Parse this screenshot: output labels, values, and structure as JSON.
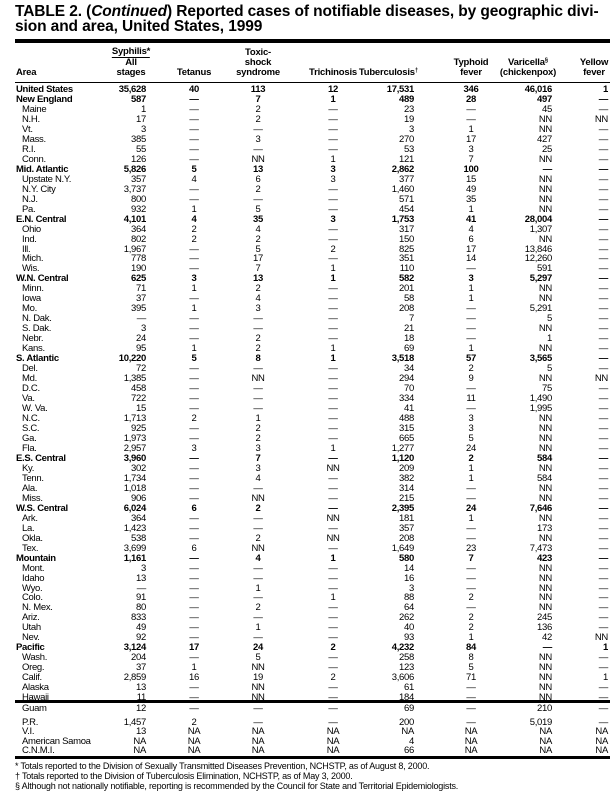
{
  "title": {
    "prefix": "TABLE 2. (",
    "continued": "Continued",
    "rest": ") Reported cases of notifiable diseases, by geographic divi-",
    "line2": "sion and area, United States, 1999"
  },
  "headers": {
    "area": "Area",
    "syphilis_group": "Syphilis*",
    "syphilis_l1": "All",
    "syphilis_l2": "stages",
    "tetanus": "Tetanus",
    "tss_l1": "Toxic-",
    "tss_l2": "shock",
    "tss_l3": "syndrome",
    "trichinosis": "Trichinosis",
    "tuberculosis": "Tuberculosis",
    "tuberculosis_mark": "†",
    "typhoid_l1": "Typhoid",
    "typhoid_l2": "fever",
    "varicella_l1": "Varicella",
    "varicella_mark": "§",
    "varicella_l2": "(chickenpox)",
    "yellow_l1": "Yellow",
    "yellow_l2": "fever"
  },
  "rows": [
    {
      "area": "United States",
      "level": "region",
      "values": [
        "35,628",
        "40",
        "113",
        "12",
        "17,531",
        "346",
        "46,016",
        "1"
      ]
    },
    {
      "area": "New England",
      "level": "region",
      "values": [
        "587",
        "—",
        "7",
        "1",
        "489",
        "28",
        "497",
        "—"
      ]
    },
    {
      "area": "Maine",
      "level": "sub",
      "values": [
        "1",
        "—",
        "2",
        "—",
        "23",
        "—",
        "45",
        "—"
      ]
    },
    {
      "area": "N.H.",
      "level": "sub",
      "values": [
        "17",
        "—",
        "2",
        "—",
        "19",
        "—",
        "NN",
        "NN"
      ]
    },
    {
      "area": "Vt.",
      "level": "sub",
      "values": [
        "3",
        "—",
        "—",
        "—",
        "3",
        "1",
        "NN",
        "—"
      ]
    },
    {
      "area": "Mass.",
      "level": "sub",
      "values": [
        "385",
        "—",
        "3",
        "—",
        "270",
        "17",
        "427",
        "—"
      ]
    },
    {
      "area": "R.I.",
      "level": "sub",
      "values": [
        "55",
        "—",
        "—",
        "—",
        "53",
        "3",
        "25",
        "—"
      ]
    },
    {
      "area": "Conn.",
      "level": "sub",
      "values": [
        "126",
        "—",
        "NN",
        "1",
        "121",
        "7",
        "NN",
        "—"
      ]
    },
    {
      "area": "Mid. Atlantic",
      "level": "region",
      "values": [
        "5,826",
        "5",
        "13",
        "3",
        "2,862",
        "100",
        "—",
        "—"
      ]
    },
    {
      "area": "Upstate N.Y.",
      "level": "sub",
      "values": [
        "357",
        "4",
        "6",
        "3",
        "377",
        "15",
        "NN",
        "—"
      ]
    },
    {
      "area": "N.Y. City",
      "level": "sub",
      "values": [
        "3,737",
        "—",
        "2",
        "—",
        "1,460",
        "49",
        "NN",
        "—"
      ]
    },
    {
      "area": "N.J.",
      "level": "sub",
      "values": [
        "800",
        "—",
        "—",
        "—",
        "571",
        "35",
        "NN",
        "—"
      ]
    },
    {
      "area": "Pa.",
      "level": "sub",
      "values": [
        "932",
        "1",
        "5",
        "—",
        "454",
        "1",
        "NN",
        "—"
      ]
    },
    {
      "area": "E.N. Central",
      "level": "region",
      "values": [
        "4,101",
        "4",
        "35",
        "3",
        "1,753",
        "41",
        "28,004",
        "—"
      ]
    },
    {
      "area": "Ohio",
      "level": "sub",
      "values": [
        "364",
        "2",
        "4",
        "—",
        "317",
        "4",
        "1,307",
        "—"
      ]
    },
    {
      "area": "Ind.",
      "level": "sub",
      "values": [
        "802",
        "2",
        "2",
        "—",
        "150",
        "6",
        "NN",
        "—"
      ]
    },
    {
      "area": "Ill.",
      "level": "sub",
      "values": [
        "1,967",
        "—",
        "5",
        "2",
        "825",
        "17",
        "13,846",
        "—"
      ]
    },
    {
      "area": "Mich.",
      "level": "sub",
      "values": [
        "778",
        "—",
        "17",
        "—",
        "351",
        "14",
        "12,260",
        "—"
      ]
    },
    {
      "area": "Wis.",
      "level": "sub",
      "values": [
        "190",
        "—",
        "7",
        "1",
        "110",
        "—",
        "591",
        "—"
      ]
    },
    {
      "area": "W.N. Central",
      "level": "region",
      "values": [
        "625",
        "3",
        "13",
        "1",
        "582",
        "3",
        "5,297",
        "—"
      ]
    },
    {
      "area": "Minn.",
      "level": "sub",
      "values": [
        "71",
        "1",
        "2",
        "—",
        "201",
        "1",
        "NN",
        "—"
      ]
    },
    {
      "area": "Iowa",
      "level": "sub",
      "values": [
        "37",
        "—",
        "4",
        "—",
        "58",
        "1",
        "NN",
        "—"
      ]
    },
    {
      "area": "Mo.",
      "level": "sub",
      "values": [
        "395",
        "1",
        "3",
        "—",
        "208",
        "—",
        "5,291",
        "—"
      ]
    },
    {
      "area": "N. Dak.",
      "level": "sub",
      "values": [
        "—",
        "—",
        "—",
        "—",
        "7",
        "—",
        "5",
        "—"
      ]
    },
    {
      "area": "S. Dak.",
      "level": "sub",
      "values": [
        "3",
        "—",
        "—",
        "—",
        "21",
        "—",
        "NN",
        "—"
      ]
    },
    {
      "area": "Nebr.",
      "level": "sub",
      "values": [
        "24",
        "—",
        "2",
        "—",
        "18",
        "—",
        "1",
        "—"
      ]
    },
    {
      "area": "Kans.",
      "level": "sub",
      "values": [
        "95",
        "1",
        "2",
        "1",
        "69",
        "1",
        "NN",
        "—"
      ]
    },
    {
      "area": "S. Atlantic",
      "level": "region",
      "values": [
        "10,220",
        "5",
        "8",
        "1",
        "3,518",
        "57",
        "3,565",
        "—"
      ]
    },
    {
      "area": "Del.",
      "level": "sub",
      "values": [
        "72",
        "—",
        "—",
        "—",
        "34",
        "2",
        "5",
        "—"
      ]
    },
    {
      "area": "Md.",
      "level": "sub",
      "values": [
        "1,385",
        "—",
        "NN",
        "—",
        "294",
        "9",
        "NN",
        "NN"
      ]
    },
    {
      "area": "D.C.",
      "level": "sub",
      "values": [
        "458",
        "—",
        "—",
        "—",
        "70",
        "—",
        "75",
        "—"
      ]
    },
    {
      "area": "Va.",
      "level": "sub",
      "values": [
        "722",
        "—",
        "—",
        "—",
        "334",
        "11",
        "1,490",
        "—"
      ]
    },
    {
      "area": "W. Va.",
      "level": "sub",
      "values": [
        "15",
        "—",
        "—",
        "—",
        "41",
        "—",
        "1,995",
        "—"
      ]
    },
    {
      "area": "N.C.",
      "level": "sub",
      "values": [
        "1,713",
        "2",
        "1",
        "—",
        "488",
        "3",
        "NN",
        "—"
      ]
    },
    {
      "area": "S.C.",
      "level": "sub",
      "values": [
        "925",
        "—",
        "2",
        "—",
        "315",
        "3",
        "NN",
        "—"
      ]
    },
    {
      "area": "Ga.",
      "level": "sub",
      "values": [
        "1,973",
        "—",
        "2",
        "—",
        "665",
        "5",
        "NN",
        "—"
      ]
    },
    {
      "area": "Fla.",
      "level": "sub",
      "values": [
        "2,957",
        "3",
        "3",
        "1",
        "1,277",
        "24",
        "NN",
        "—"
      ]
    },
    {
      "area": "E.S. Central",
      "level": "region",
      "values": [
        "3,960",
        "—",
        "7",
        "—",
        "1,120",
        "2",
        "584",
        "—"
      ]
    },
    {
      "area": "Ky.",
      "level": "sub",
      "values": [
        "302",
        "—",
        "3",
        "NN",
        "209",
        "1",
        "NN",
        "—"
      ]
    },
    {
      "area": "Tenn.",
      "level": "sub",
      "values": [
        "1,734",
        "—",
        "4",
        "—",
        "382",
        "1",
        "584",
        "—"
      ]
    },
    {
      "area": "Ala.",
      "level": "sub",
      "values": [
        "1,018",
        "—",
        "—",
        "—",
        "314",
        "—",
        "NN",
        "—"
      ]
    },
    {
      "area": "Miss.",
      "level": "sub",
      "values": [
        "906",
        "—",
        "NN",
        "—",
        "215",
        "—",
        "NN",
        "—"
      ]
    },
    {
      "area": "W.S. Central",
      "level": "region",
      "values": [
        "6,024",
        "6",
        "2",
        "—",
        "2,395",
        "24",
        "7,646",
        "—"
      ]
    },
    {
      "area": "Ark.",
      "level": "sub",
      "values": [
        "364",
        "—",
        "—",
        "NN",
        "181",
        "1",
        "NN",
        "—"
      ]
    },
    {
      "area": "La.",
      "level": "sub",
      "values": [
        "1,423",
        "—",
        "—",
        "—",
        "357",
        "—",
        "173",
        "—"
      ]
    },
    {
      "area": "Okla.",
      "level": "sub",
      "values": [
        "538",
        "—",
        "2",
        "NN",
        "208",
        "—",
        "NN",
        "—"
      ]
    },
    {
      "area": "Tex.",
      "level": "sub",
      "values": [
        "3,699",
        "6",
        "NN",
        "—",
        "1,649",
        "23",
        "7,473",
        "—"
      ]
    },
    {
      "area": "Mountain",
      "level": "region",
      "values": [
        "1,161",
        "—",
        "4",
        "1",
        "580",
        "7",
        "423",
        "—"
      ]
    },
    {
      "area": "Mont.",
      "level": "sub",
      "values": [
        "3",
        "—",
        "—",
        "—",
        "14",
        "—",
        "NN",
        "—"
      ]
    },
    {
      "area": "Idaho",
      "level": "sub",
      "values": [
        "13",
        "—",
        "—",
        "—",
        "16",
        "—",
        "NN",
        "—"
      ]
    },
    {
      "area": "Wyo.",
      "level": "sub",
      "values": [
        "—",
        "—",
        "1",
        "—",
        "3",
        "—",
        "NN",
        "—"
      ]
    },
    {
      "area": "Colo.",
      "level": "sub",
      "values": [
        "91",
        "—",
        "—",
        "1",
        "88",
        "2",
        "NN",
        "—"
      ]
    },
    {
      "area": "N. Mex.",
      "level": "sub",
      "values": [
        "80",
        "—",
        "2",
        "—",
        "64",
        "—",
        "NN",
        "—"
      ]
    },
    {
      "area": "Ariz.",
      "level": "sub",
      "values": [
        "833",
        "—",
        "—",
        "—",
        "262",
        "2",
        "245",
        "—"
      ]
    },
    {
      "area": "Utah",
      "level": "sub",
      "values": [
        "49",
        "—",
        "1",
        "—",
        "40",
        "2",
        "136",
        "—"
      ]
    },
    {
      "area": "Nev.",
      "level": "sub",
      "values": [
        "92",
        "—",
        "—",
        "—",
        "93",
        "1",
        "42",
        "NN"
      ]
    },
    {
      "area": "Pacific",
      "level": "region",
      "values": [
        "3,124",
        "17",
        "24",
        "2",
        "4,232",
        "84",
        "—",
        "1"
      ]
    },
    {
      "area": "Wash.",
      "level": "sub",
      "values": [
        "204",
        "—",
        "5",
        "—",
        "258",
        "8",
        "NN",
        "—"
      ]
    },
    {
      "area": "Oreg.",
      "level": "sub",
      "values": [
        "37",
        "1",
        "NN",
        "—",
        "123",
        "5",
        "NN",
        "—"
      ]
    },
    {
      "area": "Calif.",
      "level": "sub",
      "values": [
        "2,859",
        "16",
        "19",
        "2",
        "3,606",
        "71",
        "NN",
        "1"
      ]
    },
    {
      "area": "Alaska",
      "level": "sub",
      "values": [
        "13",
        "—",
        "NN",
        "—",
        "61",
        "—",
        "NN",
        "—"
      ]
    },
    {
      "area": "Hawaii",
      "level": "sub",
      "values": [
        "11",
        "—",
        "NN",
        "—",
        "184",
        "—",
        "NN",
        "—"
      ]
    }
  ],
  "territories": [
    {
      "area": "Guam",
      "values": [
        "12",
        "—",
        "—",
        "—",
        "69",
        "—",
        "210",
        "—"
      ]
    },
    {
      "area": "P.R.",
      "values": [
        "1,457",
        "2",
        "—",
        "—",
        "200",
        "—",
        "5,019",
        "—"
      ]
    },
    {
      "area": "V.I.",
      "values": [
        "13",
        "NA",
        "NA",
        "NA",
        "NA",
        "NA",
        "NA",
        "NA"
      ]
    },
    {
      "area": "American Samoa",
      "values": [
        "NA",
        "NA",
        "NA",
        "NA",
        "4",
        "NA",
        "NA",
        "NA"
      ]
    },
    {
      "area": "C.N.M.I.",
      "values": [
        "NA",
        "NA",
        "NA",
        "NA",
        "66",
        "NA",
        "NA",
        "NA"
      ]
    }
  ],
  "footnotes": [
    "* Totals reported to the Division of Sexually Transmitted Diseases Prevention, NCHSTP, as of August 8, 2000.",
    "† Totals reported to the Division of Tuberculosis Elimination, NCHSTP, as of May 3, 2000.",
    "§ Although not nationally notifiable, reporting is recommended by the Council for State and Territorial Epidemiologists."
  ]
}
